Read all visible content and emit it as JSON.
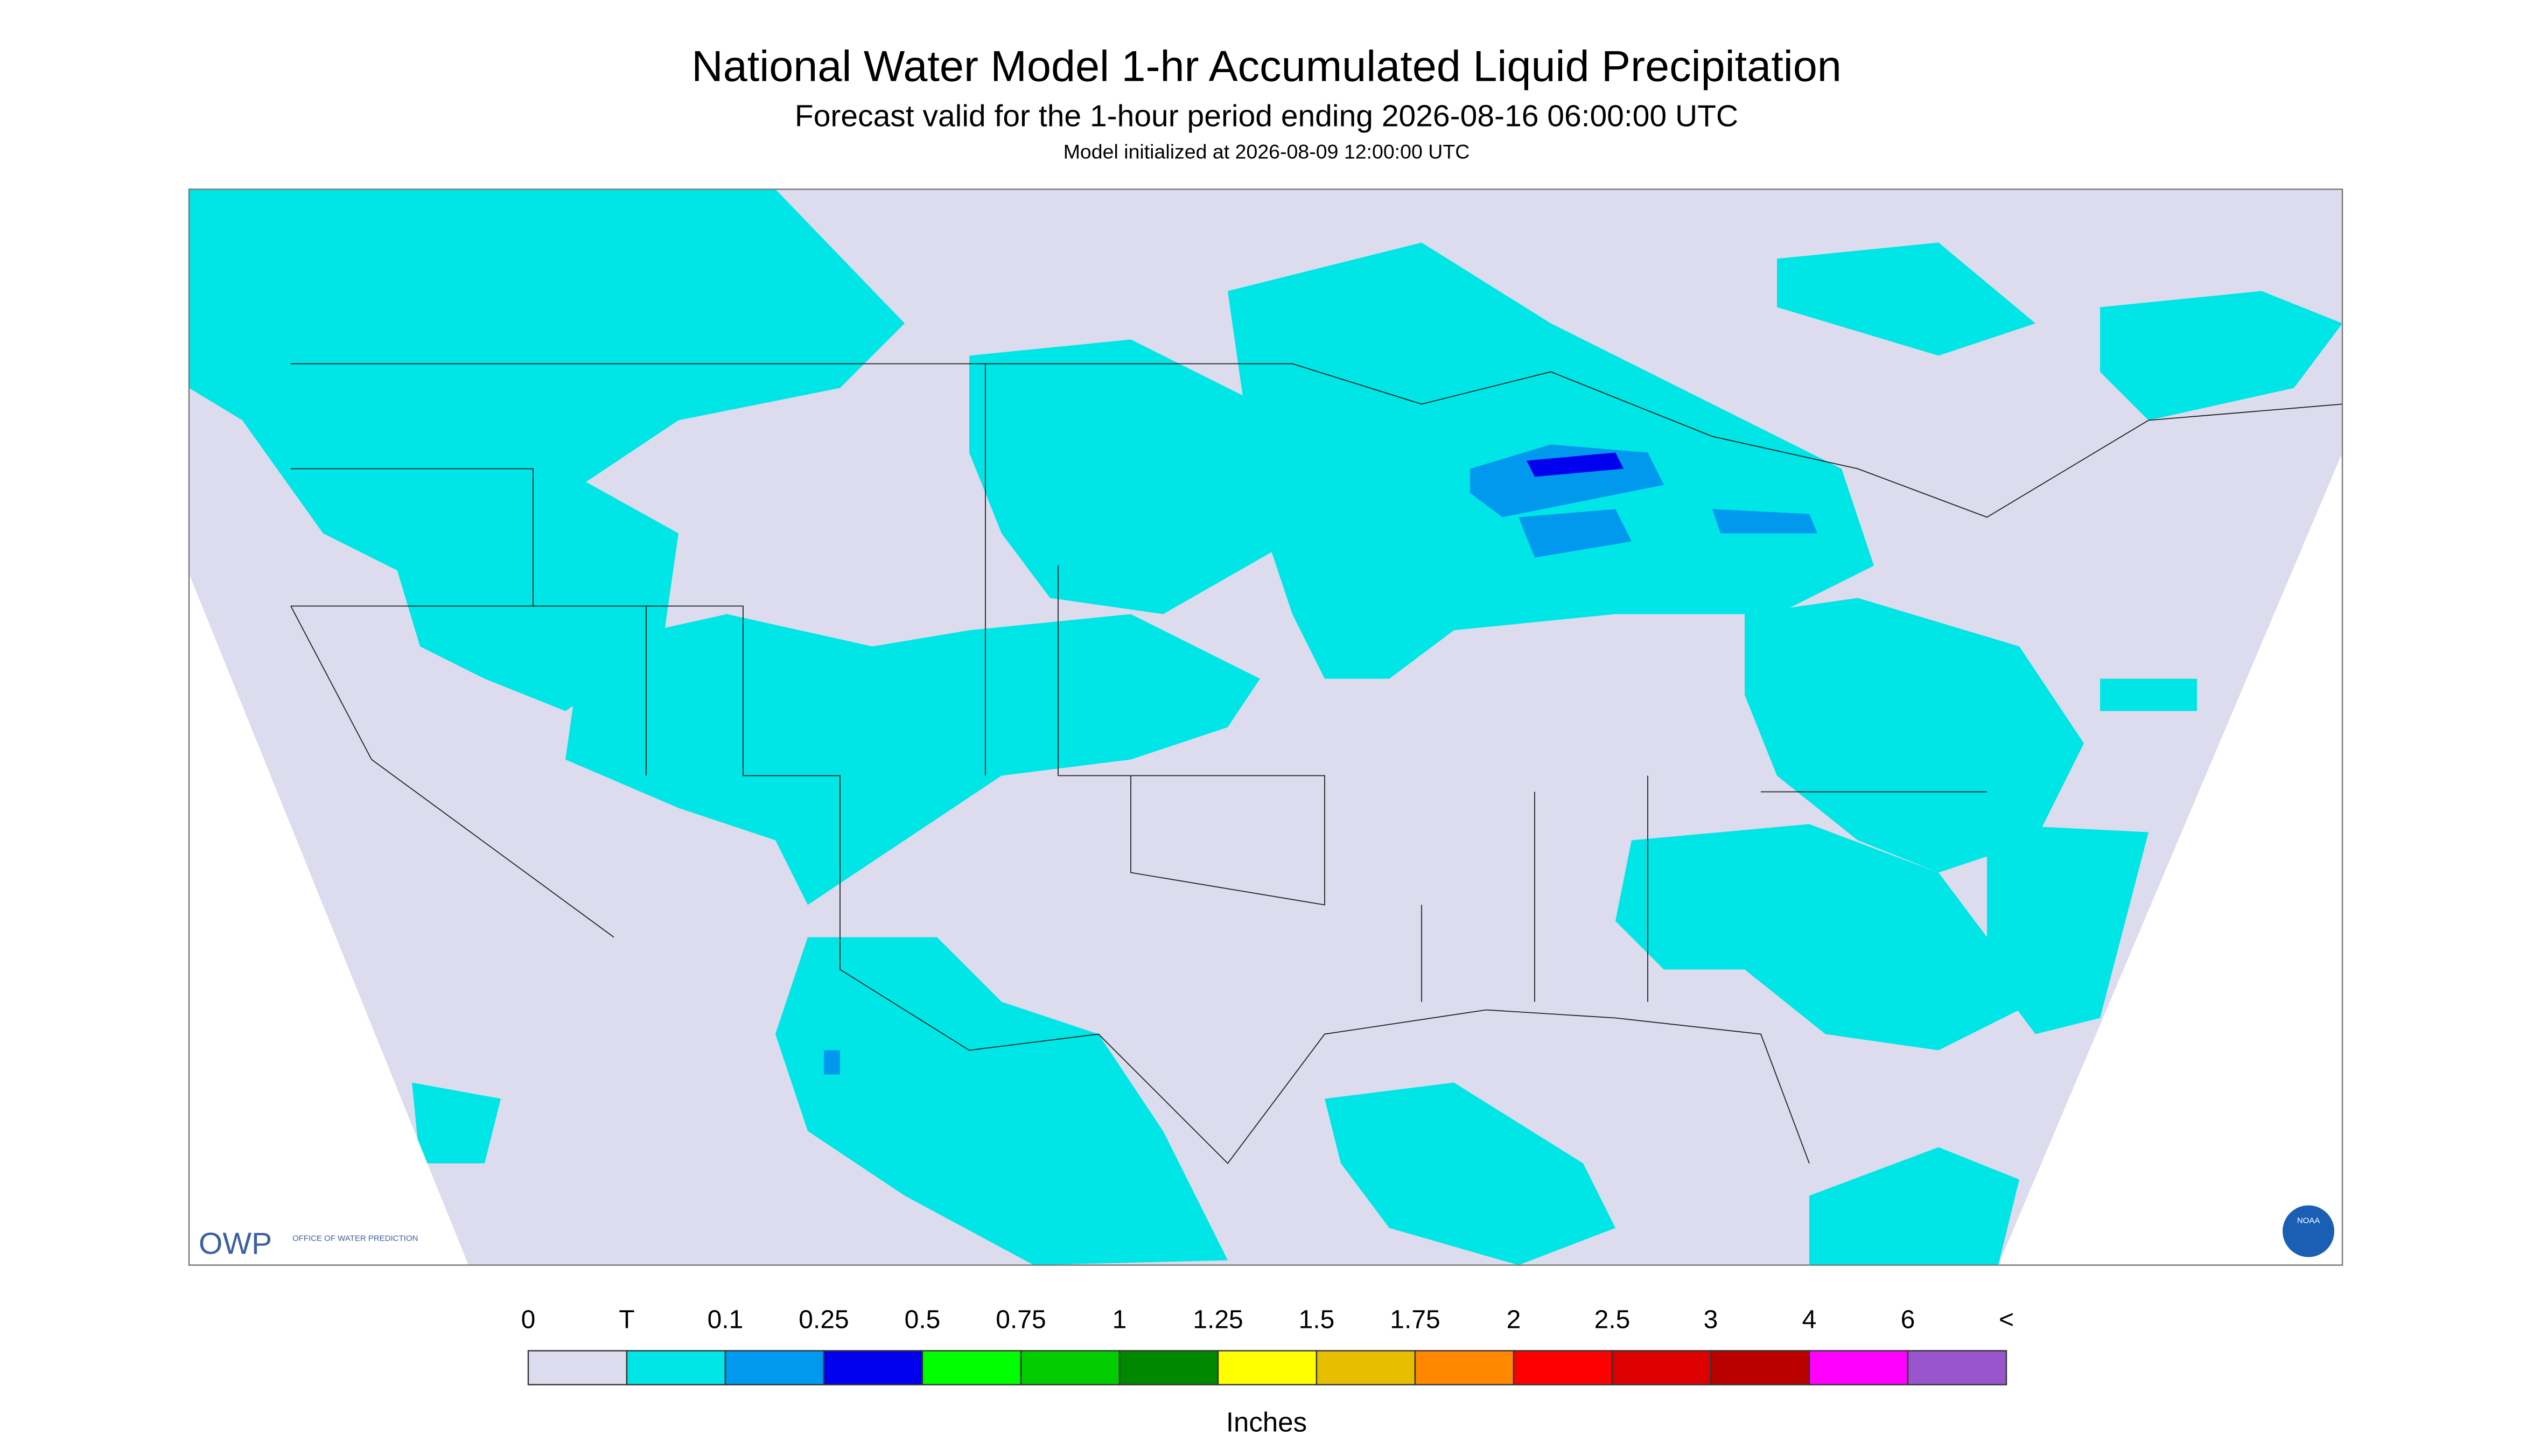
{
  "header": {
    "title": "National Water Model 1-hr Accumulated Liquid Precipitation",
    "subtitle": "Forecast valid for the 1-hour period ending 2026-08-16 06:00:00 UTC",
    "initialized": "Model initialized at 2026-08-09 12:00:00 UTC"
  },
  "legend": {
    "labels": [
      "0",
      "T",
      "0.1",
      "0.25",
      "0.5",
      "0.75",
      "1",
      "1.25",
      "1.5",
      "1.75",
      "2",
      "2.5",
      "3",
      "4",
      "6",
      "<"
    ],
    "colors": [
      "#dcdcee",
      "#00e5e5",
      "#0099ee",
      "#0000ee",
      "#00ff00",
      "#00cc00",
      "#008800",
      "#ffff00",
      "#e6bf00",
      "#ff8800",
      "#ff0000",
      "#dd0000",
      "#bb0000",
      "#ff00ff",
      "#9955cc"
    ],
    "units": "Inches"
  },
  "logos": {
    "owp": "OWP",
    "owp_name": "OFFICE OF WATER PREDICTION",
    "noaa": "NOAA"
  }
}
